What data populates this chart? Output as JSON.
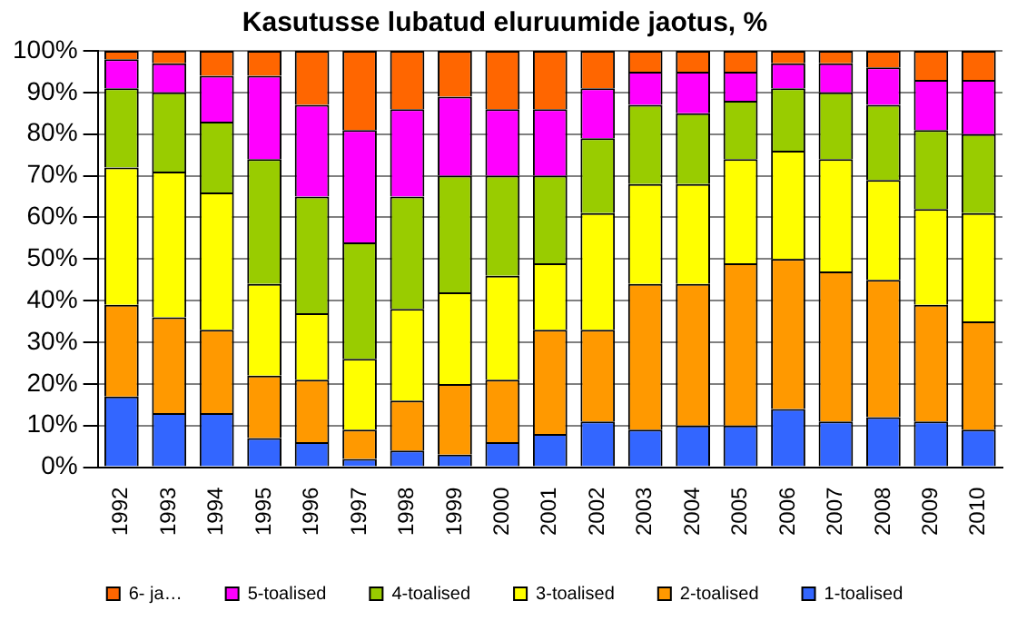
{
  "chart_data": {
    "type": "bar",
    "title": "Kasutusse lubatud eluruumide jaotus, %",
    "stacked": true,
    "legend": "bottom",
    "grid": "y",
    "categories": [
      "1992",
      "1993",
      "1994",
      "1995",
      "1996",
      "1997",
      "1998",
      "1999",
      "2000",
      "2001",
      "2002",
      "2003",
      "2004",
      "2005",
      "2006",
      "2007",
      "2008",
      "2009",
      "2010"
    ],
    "ylim": [
      0,
      100
    ],
    "yticks": [
      {
        "value": 0,
        "label": "0%"
      },
      {
        "value": 10,
        "label": "10%"
      },
      {
        "value": 20,
        "label": "20%"
      },
      {
        "value": 30,
        "label": "30%"
      },
      {
        "value": 40,
        "label": "40%"
      },
      {
        "value": 50,
        "label": "50%"
      },
      {
        "value": 60,
        "label": "60%"
      },
      {
        "value": 70,
        "label": "70%"
      },
      {
        "value": 80,
        "label": "80%"
      },
      {
        "value": 90,
        "label": "90%"
      },
      {
        "value": 100,
        "label": "100%"
      }
    ],
    "series": [
      {
        "name": "1-toalised",
        "color": "#3366ff",
        "values": [
          17,
          13,
          13,
          7,
          6,
          2,
          4,
          3,
          6,
          8,
          11,
          9,
          10,
          10,
          14,
          11,
          12,
          11,
          9
        ]
      },
      {
        "name": "2-toalised",
        "color": "#ff9900",
        "values": [
          22,
          23,
          20,
          15,
          15,
          7,
          12,
          17,
          15,
          25,
          22,
          35,
          34,
          39,
          36,
          36,
          33,
          28,
          26
        ]
      },
      {
        "name": "3-toalised",
        "color": "#ffff00",
        "values": [
          33,
          35,
          33,
          22,
          16,
          17,
          22,
          22,
          25,
          16,
          28,
          24,
          24,
          25,
          26,
          27,
          24,
          23,
          26
        ]
      },
      {
        "name": "4-toalised",
        "color": "#99cc00",
        "values": [
          19,
          19,
          17,
          30,
          28,
          28,
          27,
          28,
          24,
          21,
          18,
          19,
          17,
          14,
          15,
          16,
          18,
          19,
          19
        ]
      },
      {
        "name": "5-toalised",
        "color": "#ff00ff",
        "values": [
          7,
          7,
          11,
          20,
          22,
          27,
          21,
          19,
          16,
          16,
          12,
          8,
          10,
          7,
          6,
          7,
          9,
          12,
          13
        ]
      },
      {
        "name": "6- ja…",
        "color": "#ff6600",
        "values": [
          2,
          3,
          6,
          6,
          13,
          19,
          14,
          11,
          14,
          14,
          9,
          5,
          5,
          5,
          3,
          3,
          4,
          7,
          7
        ]
      }
    ]
  }
}
